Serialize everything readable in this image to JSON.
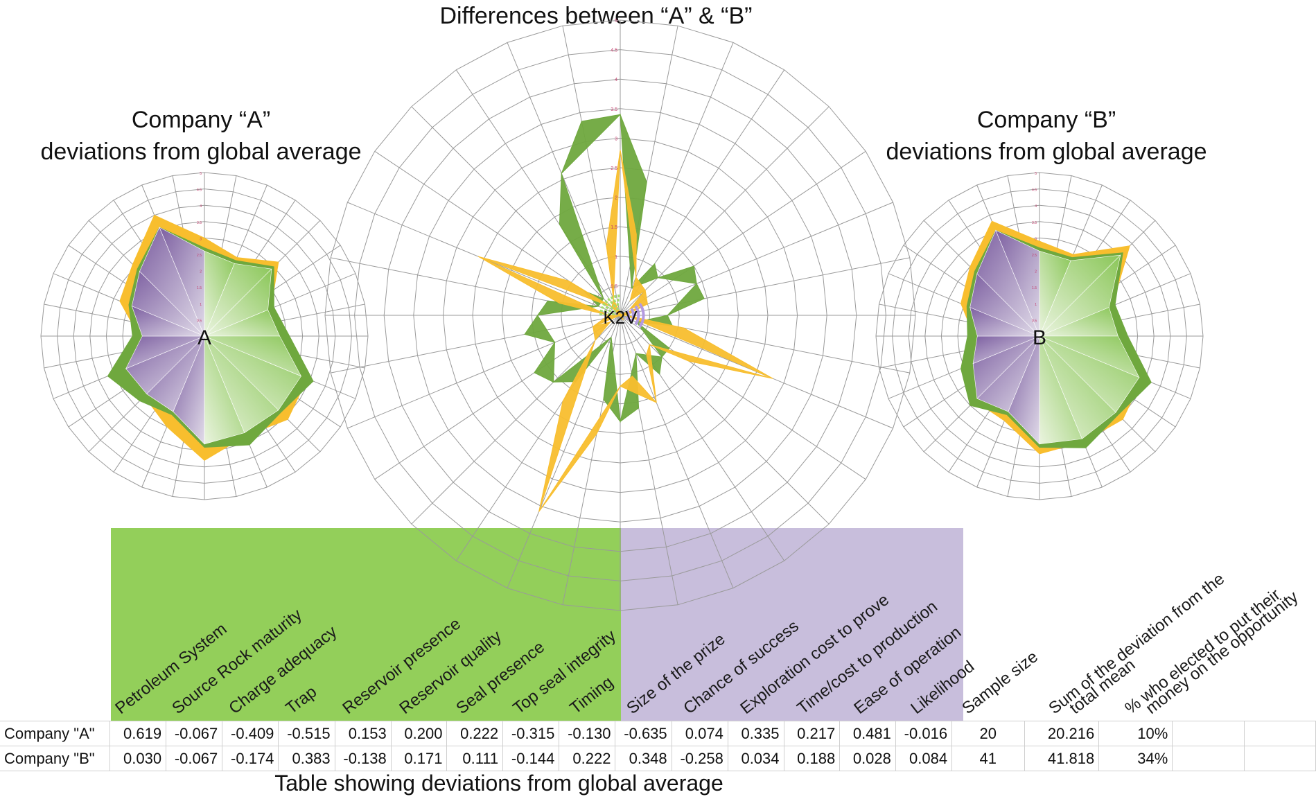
{
  "titles": {
    "center": "Differences between “A” & “B”",
    "left": "Company “A”\ndeviations from global average",
    "right": "Company “B”\ndeviations from global average",
    "bottom": "Table showing deviations from global average"
  },
  "chart_data": [
    {
      "type": "radar",
      "title": "Differences between “A” & “B”",
      "center_label": "K2V",
      "scale_labels": [
        "0.5",
        "1",
        "1.5",
        "2",
        "2.5",
        "3",
        "3.5",
        "4",
        "4.5",
        "5"
      ],
      "rmax": 5,
      "colors": {
        "green": "#6fa83e",
        "yellow": "#f8be2e",
        "purple": "#b49ae0",
        "lightgreen": "#a6db6c"
      },
      "series": [
        {
          "values": [
            3.4,
            0.5,
            0.9,
            1.4,
            0.8,
            0.3,
            1.0,
            0.7,
            1.8,
            0.4,
            1.6,
            1.2,
            1.4,
            0.4,
            0.4,
            2.6
          ],
          "color": "green"
        },
        {
          "values": [
            2.8,
            0.7,
            0.6,
            0.5,
            0.1,
            2.8,
            0.7,
            1.6,
            1.2,
            3.6,
            0.6,
            0.5,
            0.2,
            2.6,
            0.2,
            0.3
          ],
          "color": "yellow"
        }
      ]
    },
    {
      "type": "radar",
      "title": "Company “A” deviations from global average",
      "center_label": "A",
      "scale_labels": [
        "0.5",
        "1",
        "1.5",
        "2",
        "2.5",
        "3",
        "3.5",
        "4",
        "4.5",
        "5"
      ],
      "rmax": 5,
      "series": [
        {
          "values": [
            3.0,
            2.6,
            3.2,
            2.2,
            2.4,
            3.4,
            3.6,
            3.3,
            3.8,
            3.0,
            2.6,
            2.7,
            2.0,
            2.8,
            3.1,
            4.0
          ],
          "color": "yellow"
        },
        {
          "values": [
            2.7,
            2.5,
            3.0,
            2.3,
            2.6,
            3.6,
            3.3,
            3.6,
            3.4,
            2.6,
            2.8,
            3.2,
            2.2,
            2.5,
            2.9,
            3.6
          ],
          "color": "green"
        },
        {
          "values": [
            2.6,
            2.4,
            2.9,
            2.1,
            2.3,
            3.2,
            3.2,
            3.2,
            3.3,
            2.5,
            2.5,
            2.6,
            1.9,
            2.4,
            2.8,
            3.6
          ],
          "color": "purple-green"
        }
      ]
    },
    {
      "type": "radar",
      "title": "Company “B” deviations from global average",
      "center_label": "B",
      "scale_labels": [
        "0.5",
        "1",
        "1.5",
        "2",
        "2.5",
        "3",
        "3.5",
        "4",
        "4.5",
        "5"
      ],
      "rmax": 5,
      "series": [
        {
          "values": [
            2.9,
            2.7,
            3.9,
            2.4,
            2.5,
            3.4,
            3.6,
            3.5,
            3.6,
            2.8,
            2.8,
            2.3,
            2.0,
            2.6,
            3.0,
            3.8
          ],
          "color": "yellow"
        },
        {
          "values": [
            2.7,
            2.6,
            3.6,
            2.5,
            2.7,
            3.7,
            3.4,
            3.7,
            3.4,
            2.6,
            3.0,
            2.6,
            2.2,
            2.4,
            2.8,
            3.5
          ],
          "color": "green"
        },
        {
          "values": [
            2.6,
            2.5,
            3.5,
            2.3,
            2.4,
            3.3,
            3.3,
            3.4,
            3.3,
            2.5,
            2.7,
            2.2,
            1.9,
            2.3,
            2.7,
            3.5
          ],
          "color": "purple-green"
        }
      ]
    }
  ],
  "table": {
    "headers_green": [
      "Petroleum System",
      "Source Rock maturity",
      "Charge adequacy",
      "Trap",
      "Reservoir presence",
      "Reservoir quality",
      "Seal presence",
      "Top seal integrity",
      "Timing"
    ],
    "headers_purple": [
      "Size of the prize",
      "Chance of success",
      "Exploration cost to prove",
      "Time/cost to production",
      "Ease of operation",
      "Likelihood"
    ],
    "headers_extra": [
      "Sample size",
      "Sum of the deviation from the\ntotal mean",
      "% who elected to put their\nmoney on the opportunity"
    ],
    "rows": [
      {
        "label": "Company \"A\"",
        "values": [
          "0.619",
          "-0.067",
          "-0.409",
          "-0.515",
          "0.153",
          "0.200",
          "0.222",
          "-0.315",
          "-0.130",
          "-0.635",
          "0.074",
          "0.335",
          "0.217",
          "0.481",
          "-0.016"
        ],
        "sample": "20",
        "sum": "20.216",
        "pct": "10%"
      },
      {
        "label": "Company \"B\"",
        "values": [
          "0.030",
          "-0.067",
          "-0.174",
          "0.383",
          "-0.138",
          "0.171",
          "0.111",
          "-0.144",
          "0.222",
          "0.348",
          "-0.258",
          "0.034",
          "0.188",
          "0.028",
          "0.084"
        ],
        "sample": "41",
        "sum": "41.818",
        "pct": "34%"
      }
    ]
  }
}
